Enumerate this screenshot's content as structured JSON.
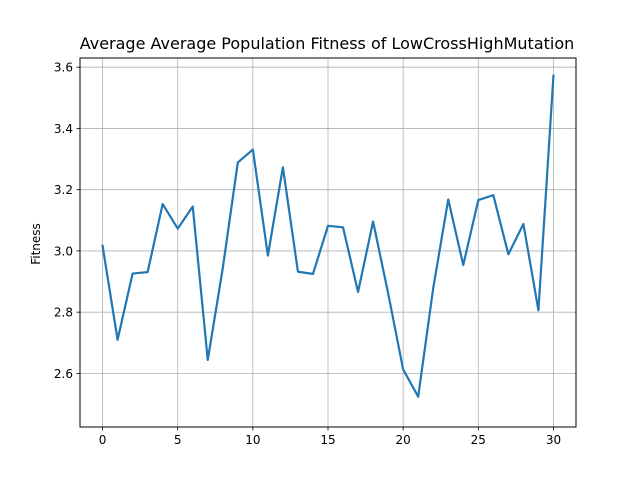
{
  "chart_data": {
    "type": "line",
    "title": "Average Average Population Fitness of LowCrossHighMutation",
    "xlabel": "",
    "ylabel": "Fitness",
    "xlim": [
      -1.5,
      31.5
    ],
    "ylim": [
      2.425,
      3.63
    ],
    "x_ticks": [
      0,
      5,
      10,
      15,
      20,
      25,
      30
    ],
    "y_ticks": [
      2.6,
      2.8,
      3.0,
      3.2,
      3.4,
      3.6
    ],
    "x_tick_labels": [
      "0",
      "5",
      "10",
      "15",
      "20",
      "25",
      "30"
    ],
    "y_tick_labels": [
      "2.6",
      "2.8",
      "3.0",
      "3.2",
      "3.4",
      "3.6"
    ],
    "grid": true,
    "legend": "none",
    "series": [
      {
        "color": "#1f77b4",
        "x": [
          0,
          1,
          2,
          3,
          4,
          5,
          6,
          7,
          8,
          9,
          10,
          11,
          12,
          13,
          14,
          15,
          16,
          17,
          18,
          19,
          20,
          21,
          22,
          23,
          24,
          25,
          26,
          27,
          28,
          29,
          30
        ],
        "values": [
          3.017,
          2.71,
          2.926,
          2.931,
          3.153,
          3.073,
          3.145,
          2.644,
          2.944,
          3.289,
          3.331,
          2.985,
          3.273,
          2.932,
          2.925,
          3.082,
          3.077,
          2.866,
          3.096,
          2.862,
          2.613,
          2.524,
          2.878,
          3.168,
          2.954,
          3.166,
          3.182,
          2.989,
          3.088,
          2.806,
          3.572
        ]
      }
    ]
  }
}
